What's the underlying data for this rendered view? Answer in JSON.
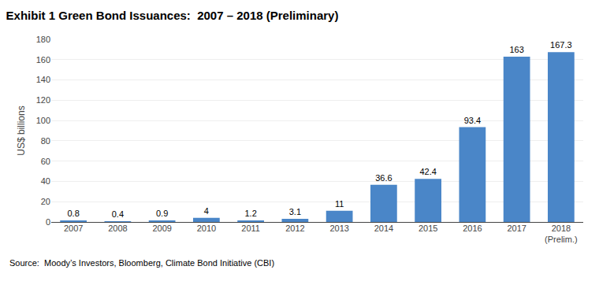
{
  "chart_data": {
    "type": "bar",
    "title": "Exhibit 1 Green Bond Issuances:  2007 – 2018 (Preliminary)",
    "categories": [
      "2007",
      "2008",
      "2009",
      "2010",
      "2011",
      "2012",
      "2013",
      "2014",
      "2015",
      "2016",
      "2017",
      "2018\n(Prelim.)"
    ],
    "values": [
      0.8,
      0.4,
      0.9,
      4,
      1.2,
      3.1,
      11,
      36.6,
      42.4,
      93.4,
      163,
      167.3
    ],
    "color": "#4a86c8",
    "ylabel": "US$ billions",
    "ylim": [
      0,
      180
    ],
    "yticks": [
      0,
      20,
      40,
      60,
      80,
      100,
      120,
      140,
      160,
      180
    ],
    "grid": true,
    "data_labels": true,
    "annotations": [
      "Source:  Moody’s Investors, Bloomberg, Climate Bond Initiative (CBI)"
    ]
  }
}
